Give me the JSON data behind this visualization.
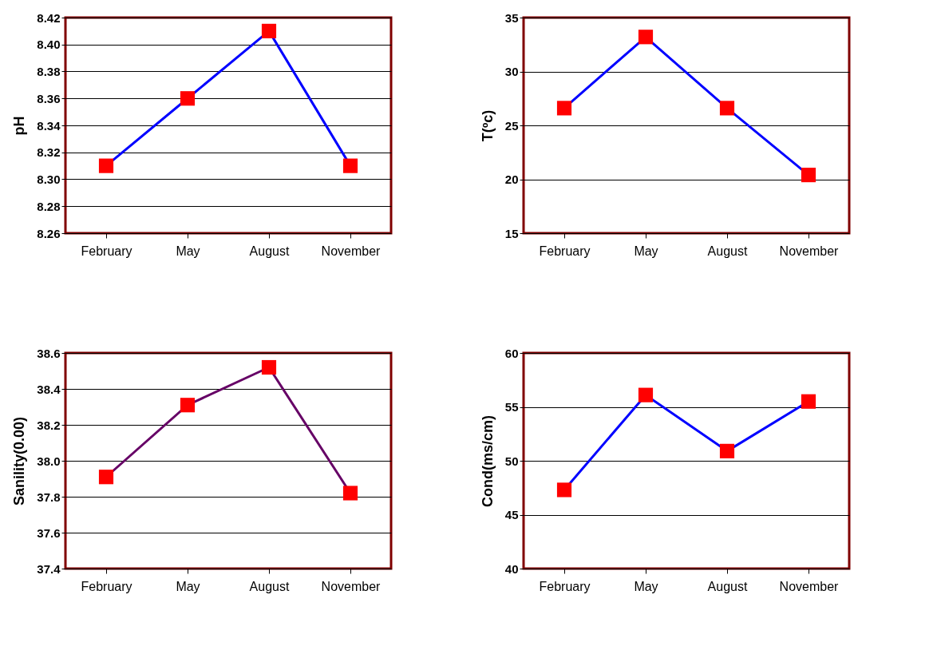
{
  "chart_data": [
    {
      "type": "line",
      "ylabel": "pH",
      "categories": [
        "February",
        "May",
        "August",
        "November"
      ],
      "series": [
        {
          "color": "#0000ff",
          "colors": [
            "#ff0000",
            "#ff0000",
            "#ff0000",
            "#ff0000"
          ],
          "values": [
            8.31,
            8.36,
            8.41,
            8.31
          ]
        }
      ],
      "ylim": [
        8.26,
        8.42
      ],
      "yticks": [
        8.26,
        8.28,
        {
          "value": 8.3,
          "label": "8.30"
        },
        8.32,
        8.34,
        8.36,
        8.38,
        {
          "value": 8.4,
          "label": "8.40"
        },
        8.42
      ],
      "grid": "y",
      "marker": "square",
      "line_style": "solid"
    },
    {
      "type": "line",
      "ylabel": "T(ºc)",
      "categories": [
        "February",
        "May",
        "August",
        "November"
      ],
      "series": [
        {
          "color": "#0000ff",
          "colors": [
            "#ff0000",
            "#ff0000",
            "#ff0000",
            "#ff0000"
          ],
          "values": [
            26.6,
            33.2,
            26.6,
            20.4
          ]
        }
      ],
      "ylim": [
        15,
        35
      ],
      "yticks": [
        15,
        20,
        25,
        30,
        35
      ],
      "grid": "y",
      "marker": "square",
      "line_style": "solid"
    },
    {
      "type": "line",
      "ylabel": "Sanility(0.00)",
      "categories": [
        "February",
        "May",
        "August",
        "November"
      ],
      "series": [
        {
          "color": "#660066",
          "colors": [
            "#ff0000",
            "#ff0000",
            "#ff0000",
            "#ff0000"
          ],
          "values": [
            37.91,
            38.31,
            38.52,
            37.82
          ]
        }
      ],
      "ylim": [
        37.4,
        38.6
      ],
      "yticks": [
        37.4,
        37.6,
        37.8,
        {
          "value": 38,
          "label": "38.0"
        },
        38.2,
        38.4,
        38.6
      ],
      "grid": "y",
      "marker": "square",
      "line_style": "solid"
    },
    {
      "type": "line",
      "ylabel": "Cond(ms/cm)",
      "categories": [
        "February",
        "May",
        "August",
        "November"
      ],
      "series": [
        {
          "color": "#0000ff",
          "colors": [
            "#ff0000",
            "#ff0000",
            "#ff0000",
            "#ff0000"
          ],
          "values": [
            47.3,
            56.1,
            50.9,
            55.5
          ]
        }
      ],
      "ylim": [
        40,
        60
      ],
      "yticks": [
        40,
        45,
        50,
        55,
        60
      ],
      "grid": "y",
      "marker": "square",
      "line_style": "solid"
    }
  ]
}
